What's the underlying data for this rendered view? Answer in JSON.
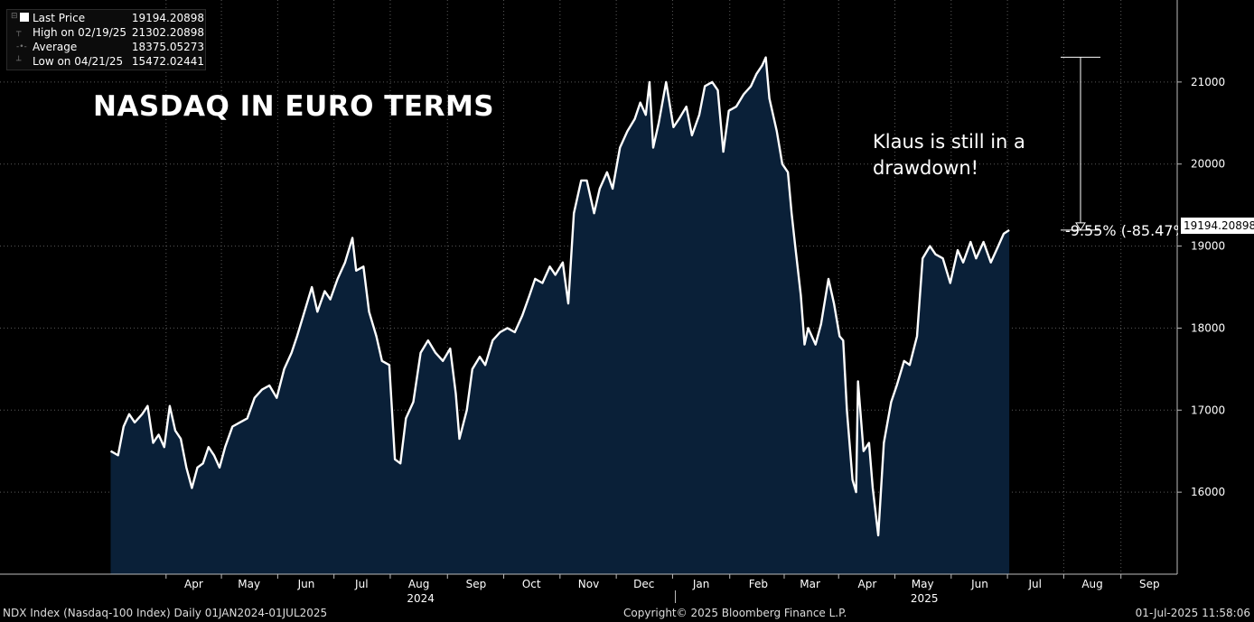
{
  "title": "NASDAQ IN EURO TERMS",
  "annotation": "Klaus is still in a drawdown!",
  "drawdown_label": "-9.55% (-85.47%",
  "last_price_tag": "19194.20898",
  "legend": [
    {
      "label": "Last Price",
      "value": "19194.20898"
    },
    {
      "label": "High on 02/19/25",
      "value": "21302.20898"
    },
    {
      "label": "Average",
      "value": "18375.05273"
    },
    {
      "label": "Low on 04/21/25",
      "value": "15472.02441"
    }
  ],
  "footer": {
    "left": "NDX Index (Nasdaq-100 Index)  Daily 01JAN2024-01JUL2025",
    "center": "Copyright© 2025 Bloomberg Finance L.P.",
    "right": "01-Jul-2025 11:58:06"
  },
  "colors": {
    "background": "#000000",
    "line": "#ffffff",
    "area": "#0a2038"
  },
  "chart_data": {
    "type": "area",
    "title": "NASDAQ IN EURO TERMS",
    "ylim": [
      15000,
      22000
    ],
    "y_ticks": [
      16000,
      17000,
      18000,
      19000,
      20000,
      21000
    ],
    "x_range": [
      "2024-01-01",
      "2025-09-30"
    ],
    "month_ticks": [
      {
        "label": "Apr",
        "date": "2024-04-15"
      },
      {
        "label": "May",
        "date": "2024-05-15"
      },
      {
        "label": "Jun",
        "date": "2024-06-15"
      },
      {
        "label": "Jul",
        "date": "2024-07-15"
      },
      {
        "label": "Aug",
        "date": "2024-08-15"
      },
      {
        "label": "Sep",
        "date": "2024-09-15"
      },
      {
        "label": "Oct",
        "date": "2024-10-15"
      },
      {
        "label": "Nov",
        "date": "2024-11-15"
      },
      {
        "label": "Dec",
        "date": "2024-12-15"
      },
      {
        "label": "Jan",
        "date": "2025-01-15"
      },
      {
        "label": "Feb",
        "date": "2025-02-15"
      },
      {
        "label": "Mar",
        "date": "2025-03-15"
      },
      {
        "label": "Apr",
        "date": "2025-04-15"
      },
      {
        "label": "May",
        "date": "2025-05-15"
      },
      {
        "label": "Jun",
        "date": "2025-06-15"
      },
      {
        "label": "Jul",
        "date": "2025-07-15"
      },
      {
        "label": "Aug",
        "date": "2025-08-15"
      },
      {
        "label": "Sep",
        "date": "2025-09-15"
      }
    ],
    "year_labels": [
      {
        "label": "2024",
        "date": "2024-08-16"
      },
      {
        "label": "2025",
        "date": "2025-05-16"
      }
    ],
    "grid": true,
    "series": [
      {
        "values": [
          [
            "2024-03-01",
            16500
          ],
          [
            "2024-03-05",
            16450
          ],
          [
            "2024-03-08",
            16800
          ],
          [
            "2024-03-11",
            16950
          ],
          [
            "2024-03-14",
            16850
          ],
          [
            "2024-03-18",
            16950
          ],
          [
            "2024-03-21",
            17050
          ],
          [
            "2024-03-24",
            16600
          ],
          [
            "2024-03-27",
            16700
          ],
          [
            "2024-03-30",
            16550
          ],
          [
            "2024-04-02",
            17050
          ],
          [
            "2024-04-05",
            16750
          ],
          [
            "2024-04-08",
            16650
          ],
          [
            "2024-04-11",
            16300
          ],
          [
            "2024-04-14",
            16050
          ],
          [
            "2024-04-17",
            16300
          ],
          [
            "2024-04-20",
            16350
          ],
          [
            "2024-04-23",
            16550
          ],
          [
            "2024-04-26",
            16450
          ],
          [
            "2024-04-29",
            16300
          ],
          [
            "2024-05-02",
            16550
          ],
          [
            "2024-05-06",
            16800
          ],
          [
            "2024-05-10",
            16850
          ],
          [
            "2024-05-14",
            16900
          ],
          [
            "2024-05-18",
            17150
          ],
          [
            "2024-05-22",
            17250
          ],
          [
            "2024-05-26",
            17300
          ],
          [
            "2024-05-30",
            17150
          ],
          [
            "2024-06-03",
            17500
          ],
          [
            "2024-06-07",
            17700
          ],
          [
            "2024-06-10",
            17900
          ],
          [
            "2024-06-14",
            18200
          ],
          [
            "2024-06-18",
            18500
          ],
          [
            "2024-06-21",
            18200
          ],
          [
            "2024-06-25",
            18450
          ],
          [
            "2024-06-28",
            18350
          ],
          [
            "2024-07-02",
            18600
          ],
          [
            "2024-07-06",
            18800
          ],
          [
            "2024-07-10",
            19100
          ],
          [
            "2024-07-12",
            18700
          ],
          [
            "2024-07-16",
            18750
          ],
          [
            "2024-07-19",
            18200
          ],
          [
            "2024-07-23",
            17900
          ],
          [
            "2024-07-26",
            17600
          ],
          [
            "2024-07-30",
            17550
          ],
          [
            "2024-08-02",
            16400
          ],
          [
            "2024-08-05",
            16350
          ],
          [
            "2024-08-08",
            16900
          ],
          [
            "2024-08-12",
            17100
          ],
          [
            "2024-08-16",
            17700
          ],
          [
            "2024-08-20",
            17850
          ],
          [
            "2024-08-24",
            17700
          ],
          [
            "2024-08-28",
            17600
          ],
          [
            "2024-09-01",
            17750
          ],
          [
            "2024-09-04",
            17200
          ],
          [
            "2024-09-06",
            16650
          ],
          [
            "2024-09-10",
            17000
          ],
          [
            "2024-09-13",
            17500
          ],
          [
            "2024-09-17",
            17650
          ],
          [
            "2024-09-20",
            17550
          ],
          [
            "2024-09-24",
            17850
          ],
          [
            "2024-09-28",
            17950
          ],
          [
            "2024-10-02",
            18000
          ],
          [
            "2024-10-06",
            17950
          ],
          [
            "2024-10-10",
            18150
          ],
          [
            "2024-10-14",
            18400
          ],
          [
            "2024-10-17",
            18600
          ],
          [
            "2024-10-21",
            18550
          ],
          [
            "2024-10-25",
            18750
          ],
          [
            "2024-10-28",
            18650
          ],
          [
            "2024-11-01",
            18800
          ],
          [
            "2024-11-04",
            18300
          ],
          [
            "2024-11-07",
            19400
          ],
          [
            "2024-11-11",
            19800
          ],
          [
            "2024-11-14",
            19800
          ],
          [
            "2024-11-18",
            19400
          ],
          [
            "2024-11-21",
            19700
          ],
          [
            "2024-11-25",
            19900
          ],
          [
            "2024-11-28",
            19700
          ],
          [
            "2024-12-02",
            20200
          ],
          [
            "2024-12-06",
            20400
          ],
          [
            "2024-12-10",
            20550
          ],
          [
            "2024-12-13",
            20750
          ],
          [
            "2024-12-16",
            20600
          ],
          [
            "2024-12-18",
            21000
          ],
          [
            "2024-12-20",
            20200
          ],
          [
            "2024-12-23",
            20500
          ],
          [
            "2024-12-27",
            21000
          ],
          [
            "2024-12-31",
            20450
          ],
          [
            "2025-01-03",
            20550
          ],
          [
            "2025-01-07",
            20700
          ],
          [
            "2025-01-10",
            20350
          ],
          [
            "2025-01-14",
            20600
          ],
          [
            "2025-01-17",
            20950
          ],
          [
            "2025-01-21",
            21000
          ],
          [
            "2025-01-24",
            20900
          ],
          [
            "2025-01-27",
            20150
          ],
          [
            "2025-01-30",
            20650
          ],
          [
            "2025-02-03",
            20700
          ],
          [
            "2025-02-07",
            20850
          ],
          [
            "2025-02-11",
            20950
          ],
          [
            "2025-02-14",
            21100
          ],
          [
            "2025-02-17",
            21200
          ],
          [
            "2025-02-19",
            21300
          ],
          [
            "2025-02-21",
            20800
          ],
          [
            "2025-02-25",
            20400
          ],
          [
            "2025-02-28",
            20000
          ],
          [
            "2025-03-03",
            19900
          ],
          [
            "2025-03-05",
            19400
          ],
          [
            "2025-03-07",
            19000
          ],
          [
            "2025-03-10",
            18400
          ],
          [
            "2025-03-12",
            17800
          ],
          [
            "2025-03-14",
            18000
          ],
          [
            "2025-03-18",
            17800
          ],
          [
            "2025-03-21",
            18050
          ],
          [
            "2025-03-25",
            18600
          ],
          [
            "2025-03-28",
            18300
          ],
          [
            "2025-03-31",
            17900
          ],
          [
            "2025-04-02",
            17850
          ],
          [
            "2025-04-04",
            17000
          ],
          [
            "2025-04-07",
            16150
          ],
          [
            "2025-04-09",
            16000
          ],
          [
            "2025-04-10",
            17350
          ],
          [
            "2025-04-13",
            16500
          ],
          [
            "2025-04-16",
            16600
          ],
          [
            "2025-04-18",
            16050
          ],
          [
            "2025-04-21",
            15472
          ],
          [
            "2025-04-24",
            16600
          ],
          [
            "2025-04-28",
            17100
          ],
          [
            "2025-05-01",
            17300
          ],
          [
            "2025-05-05",
            17600
          ],
          [
            "2025-05-08",
            17550
          ],
          [
            "2025-05-12",
            17900
          ],
          [
            "2025-05-15",
            18850
          ],
          [
            "2025-05-19",
            19000
          ],
          [
            "2025-05-22",
            18900
          ],
          [
            "2025-05-26",
            18850
          ],
          [
            "2025-05-30",
            18550
          ],
          [
            "2025-06-03",
            18950
          ],
          [
            "2025-06-06",
            18800
          ],
          [
            "2025-06-10",
            19050
          ],
          [
            "2025-06-13",
            18850
          ],
          [
            "2025-06-17",
            19050
          ],
          [
            "2025-06-21",
            18800
          ],
          [
            "2025-06-25",
            19000
          ],
          [
            "2025-06-28",
            19150
          ],
          [
            "2025-07-01",
            19194
          ]
        ]
      }
    ]
  }
}
